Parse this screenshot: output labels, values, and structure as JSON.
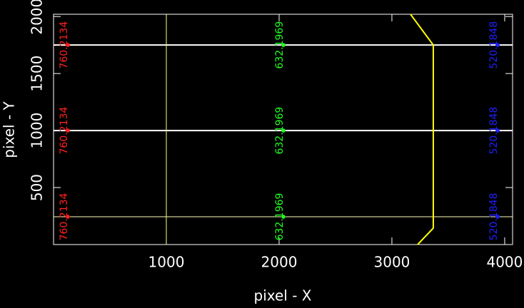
{
  "chart_data": {
    "type": "line",
    "xlabel": "pixel - X",
    "ylabel": "pixel - Y",
    "xlim": [
      0,
      4070
    ],
    "ylim": [
      0,
      2020
    ],
    "xticks": [
      1000,
      2000,
      3000,
      4000
    ],
    "yticks": [
      500,
      1000,
      1500,
      2000
    ],
    "series": [
      {
        "color": "#ffffff",
        "width": 2,
        "x": [
          0,
          4070
        ],
        "values": [
          1750,
          1750
        ]
      },
      {
        "color": "#ffffff",
        "width": 2,
        "x": [
          0,
          4070
        ],
        "values": [
          1000,
          1000
        ]
      },
      {
        "color": "#ffffc0",
        "width": 1,
        "x": [
          0,
          4070
        ],
        "values": [
          244,
          244
        ]
      },
      {
        "color": "#ffff80",
        "width": 1,
        "x": [
          1000,
          1000
        ],
        "values": [
          0,
          2020
        ]
      },
      {
        "color": "#ffff00",
        "width": 2,
        "x": [
          3165,
          3367,
          3367,
          3228
        ],
        "values": [
          2020,
          1750,
          144,
          0
        ]
      },
      {
        "color": "#ff2020",
        "marker": true,
        "x": [
          127,
          127,
          127
        ],
        "values": [
          1750,
          1000,
          244
        ],
        "labels": [
          "760.2134",
          "760.2134",
          "760.2134"
        ]
      },
      {
        "color": "#20ff20",
        "marker": true,
        "x": [
          2038,
          2038,
          2038
        ],
        "values": [
          1750,
          1000,
          244
        ],
        "labels": [
          "632.1969",
          "632.1969",
          "632.1969"
        ]
      },
      {
        "color": "#2020ff",
        "marker": true,
        "x": [
          3937,
          3937,
          3937
        ],
        "values": [
          1750,
          1000,
          244
        ],
        "labels": [
          "520.1848",
          "520.1848",
          "520.1848"
        ]
      }
    ]
  }
}
